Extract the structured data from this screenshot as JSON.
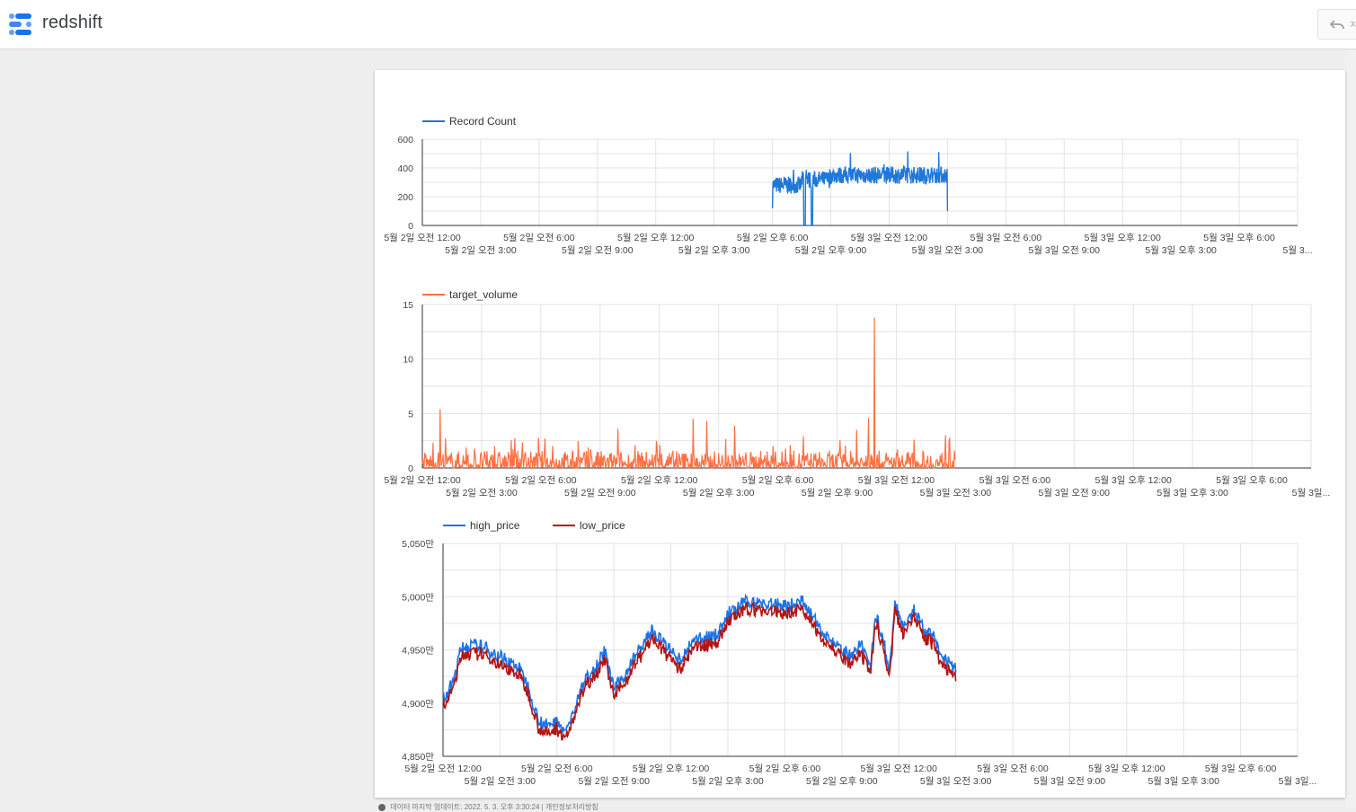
{
  "app": {
    "title": "redshift",
    "undo_label": "ㅈ"
  },
  "colors": {
    "record": "#1f77d9",
    "target": "#ff7043",
    "high": "#1a73e8",
    "low": "#b31412"
  },
  "chart_data": [
    {
      "type": "line",
      "series": [
        {
          "name": "Record Count",
          "color": "#1f77d9"
        }
      ],
      "ylim": [
        0,
        600
      ],
      "yticks": [
        "0",
        "200",
        "400",
        "600"
      ],
      "xticks_row1": [
        "5월 2일 오전 12:00",
        "5월 2일 오전 6:00",
        "5월 2일 오후 12:00",
        "5월 2일 오후 6:00",
        "5월 3일 오전 12:00",
        "5월 3일 오전 6:00",
        "5월 3일 오후 12:00",
        "5월 3일 오후 6:00"
      ],
      "xticks_row2": [
        "5월 2일 오전 3:00",
        "5월 2일 오전 9:00",
        "5월 2일 오후 3:00",
        "5월 2일 오후 9:00",
        "5월 3일 오전 3:00",
        "5월 3일 오전 9:00",
        "5월 3일 오후 3:00",
        "5월 3..."
      ],
      "x_range_hours": [
        0,
        45
      ],
      "data_window_hours": [
        18,
        27
      ],
      "level_estimate": {
        "18.0-19.5": 280,
        "19.5-21.0": 340,
        "21.0-27.0": 350
      },
      "dip_at_hours": [
        19.6,
        20.0
      ],
      "legend": "top-left",
      "grid": true
    },
    {
      "type": "line",
      "series": [
        {
          "name": "target_volume",
          "color": "#ff7043"
        }
      ],
      "ylim": [
        0,
        15
      ],
      "yticks": [
        "0",
        "5",
        "10",
        "15"
      ],
      "xticks_row1": [
        "5월 2일 오전 12:00",
        "5월 2일 오전 6:00",
        "5월 2일 오후 12:00",
        "5월 2일 오후 6:00",
        "5월 3일 오전 12:00",
        "5월 3일 오전 6:00",
        "5월 3일 오후 12:00",
        "5월 3일 오후 6:00"
      ],
      "xticks_row2": [
        "5월 2일 오전 3:00",
        "5월 2일 오전 9:00",
        "5월 2일 오후 3:00",
        "5월 2일 오후 9:00",
        "5월 3일 오전 3:00",
        "5월 3일 오전 9:00",
        "5월 3일 오후 3:00",
        "5월 3일..."
      ],
      "x_range_hours": [
        0,
        45
      ],
      "data_window_hours": [
        0,
        27
      ],
      "peaks": [
        {
          "x": 0.9,
          "y": 5.4
        },
        {
          "x": 6.2,
          "y": 2.7
        },
        {
          "x": 9.9,
          "y": 3.6
        },
        {
          "x": 13.7,
          "y": 4.5
        },
        {
          "x": 14.4,
          "y": 4.3
        },
        {
          "x": 15.8,
          "y": 3.9
        },
        {
          "x": 19.3,
          "y": 2.9
        },
        {
          "x": 22.0,
          "y": 3.5
        },
        {
          "x": 22.6,
          "y": 4.6
        },
        {
          "x": 22.9,
          "y": 13.8
        },
        {
          "x": 26.5,
          "y": 3.0
        }
      ],
      "legend": "top-left",
      "grid": true
    },
    {
      "type": "line",
      "series": [
        {
          "name": "high_price",
          "color": "#1a73e8"
        },
        {
          "name": "low_price",
          "color": "#b31412"
        }
      ],
      "ylim": [
        48500000,
        50500000
      ],
      "yticks": [
        "4,850만",
        "4,900만",
        "4,950만",
        "5,000만",
        "5,050만"
      ],
      "xticks_row1": [
        "5월 2일 오전 12:00",
        "5월 2일 오전 6:00",
        "5월 2일 오후 12:00",
        "5월 2일 오후 6:00",
        "5월 3일 오전 12:00",
        "5월 3일 오전 6:00",
        "5월 3일 오후 12:00",
        "5월 3일 오후 6:00"
      ],
      "xticks_row2": [
        "5월 2일 오전 3:00",
        "5월 2일 오전 9:00",
        "5월 2일 오후 3:00",
        "5월 2일 오후 9:00",
        "5월 3일 오전 3:00",
        "5월 3일 오전 9:00",
        "5월 3일 오후 3:00",
        "5월 3일..."
      ],
      "x_range_hours": [
        0,
        45
      ],
      "keypoints": [
        [
          0.0,
          48990000
        ],
        [
          0.5,
          49150000
        ],
        [
          1.0,
          49500000
        ],
        [
          2.0,
          49500000
        ],
        [
          3.0,
          49400000
        ],
        [
          4.0,
          49300000
        ],
        [
          4.5,
          49120000
        ],
        [
          5.0,
          48820000
        ],
        [
          5.5,
          48740000
        ],
        [
          6.0,
          48800000
        ],
        [
          6.5,
          48700000
        ],
        [
          7.0,
          48950000
        ],
        [
          7.5,
          49200000
        ],
        [
          8.0,
          49300000
        ],
        [
          8.5,
          49450000
        ],
        [
          9.0,
          49100000
        ],
        [
          9.5,
          49200000
        ],
        [
          10.0,
          49380000
        ],
        [
          10.5,
          49500000
        ],
        [
          11.0,
          49650000
        ],
        [
          11.5,
          49550000
        ],
        [
          12.0,
          49450000
        ],
        [
          12.5,
          49350000
        ],
        [
          13.0,
          49500000
        ],
        [
          13.5,
          49580000
        ],
        [
          14.0,
          49580000
        ],
        [
          14.5,
          49620000
        ],
        [
          15.0,
          49800000
        ],
        [
          16.0,
          49920000
        ],
        [
          17.0,
          49900000
        ],
        [
          18.0,
          49880000
        ],
        [
          19.0,
          49920000
        ],
        [
          19.5,
          49750000
        ],
        [
          20.0,
          49650000
        ],
        [
          20.5,
          49550000
        ],
        [
          21.0,
          49450000
        ],
        [
          21.5,
          49400000
        ],
        [
          22.0,
          49500000
        ],
        [
          22.5,
          49300000
        ],
        [
          22.8,
          49800000
        ],
        [
          23.2,
          49550000
        ],
        [
          23.5,
          49250000
        ],
        [
          23.8,
          49900000
        ],
        [
          24.2,
          49700000
        ],
        [
          24.8,
          49850000
        ],
        [
          25.3,
          49650000
        ],
        [
          25.8,
          49600000
        ],
        [
          26.2,
          49400000
        ],
        [
          26.6,
          49350000
        ],
        [
          27.0,
          49280000
        ]
      ],
      "legend": "top-left",
      "grid": true
    }
  ],
  "footer": {
    "text": "데이터 마지막 업데이트: 2022. 5. 3. 오후 3:30:24 | 개인정보처리방침"
  }
}
